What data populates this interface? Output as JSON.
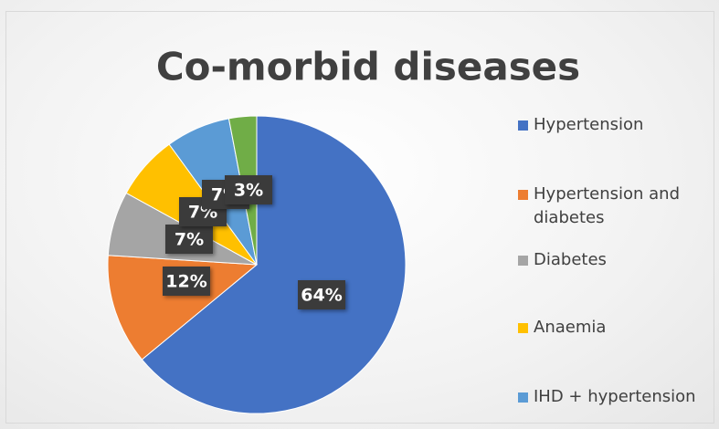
{
  "chart_data": {
    "type": "pie",
    "title": "Co-morbid diseases",
    "categories": [
      "Hypertension",
      "Hypertension and diabetes",
      "Diabetes",
      "Anaemia",
      "IHD + hypertension",
      null
    ],
    "values": [
      64,
      12,
      7,
      7,
      7,
      3
    ],
    "value_labels": [
      "64%",
      "12%",
      "7%",
      "7%",
      "7%",
      "3%"
    ],
    "colors": [
      "#4472c4",
      "#ed7d31",
      "#a5a5a5",
      "#ffc000",
      "#5b9bd5",
      "#70ad47"
    ],
    "legend": "right"
  }
}
